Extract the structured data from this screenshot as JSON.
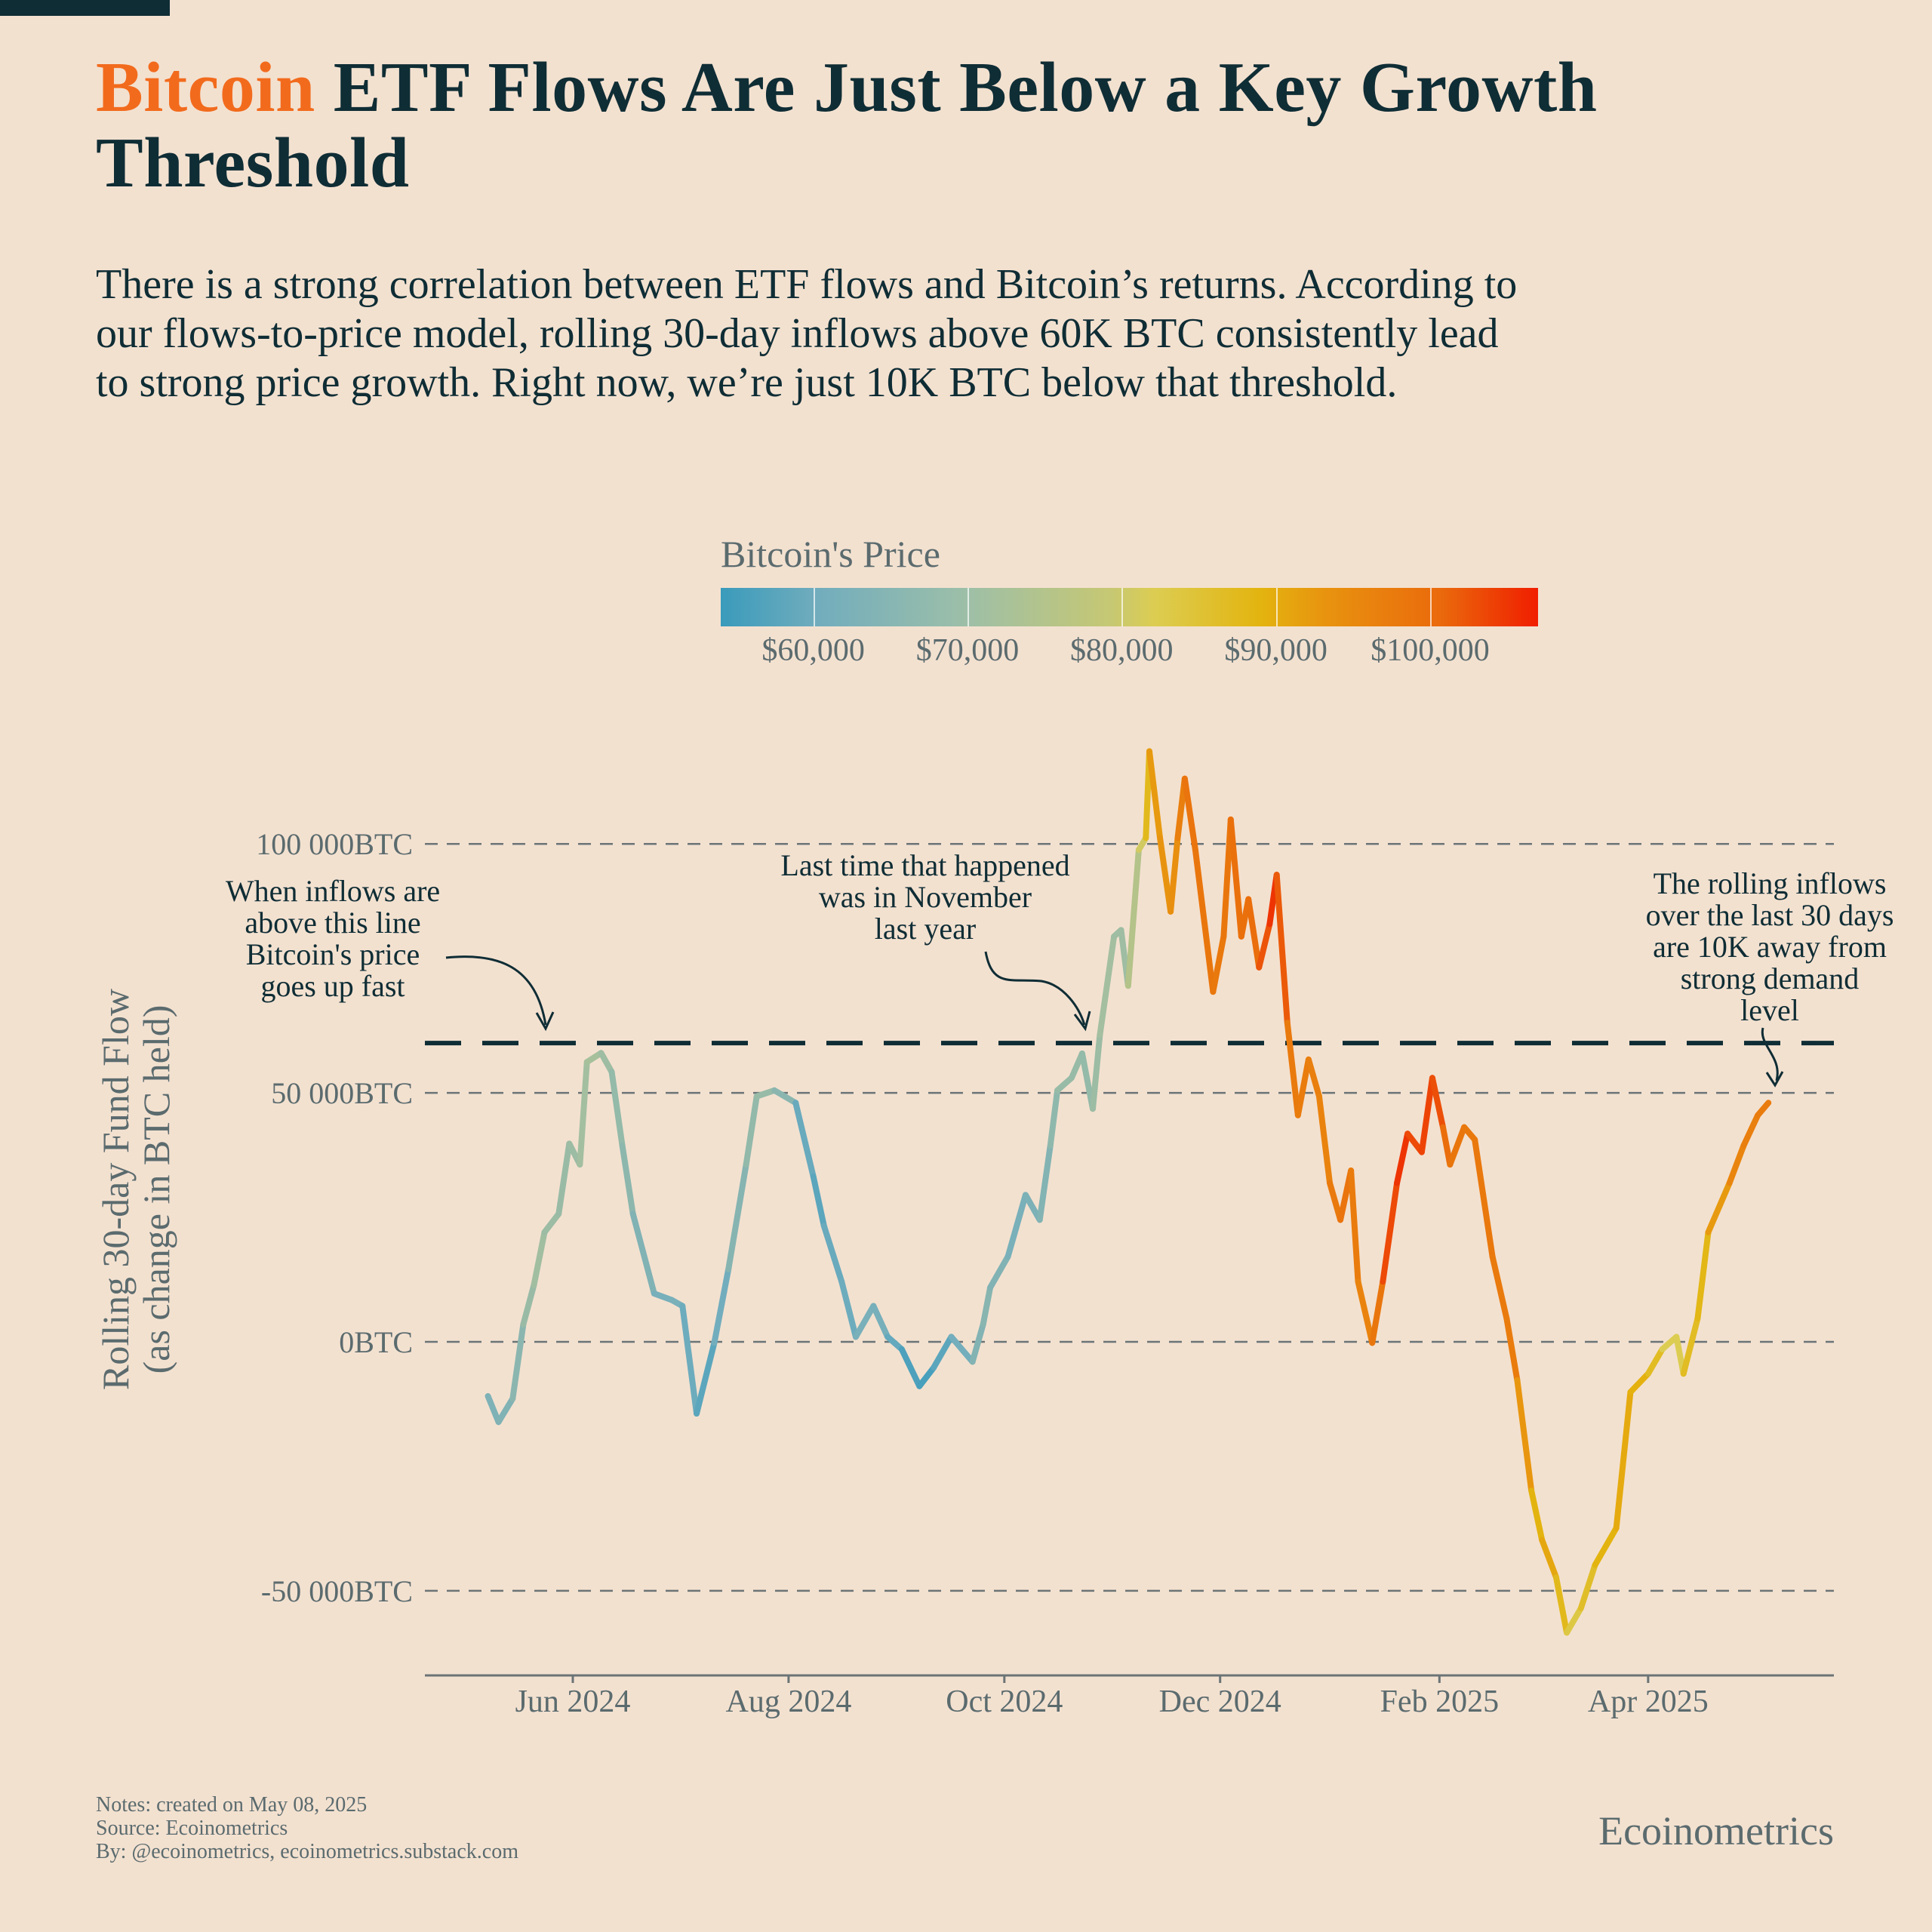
{
  "title": {
    "accent": "Bitcoin",
    "rest": " ETF Flows Are Just Below a Key Growth Threshold"
  },
  "subtitle": "There is a strong correlation between ETF flows and Bitcoin’s returns. According to our flows-to-price model, rolling 30-day inflows above 60K BTC consistently lead to strong price growth. Right now, we’re just 10K BTC below that threshold.",
  "colors": {
    "accent": "#f26b1d",
    "text": "#0f2d35",
    "muted": "#5b6b6e",
    "background": "#f3e1d0",
    "threshold": "#0f2d35",
    "grid": "#6b7476"
  },
  "colorbar": {
    "title": "Bitcoin's Price",
    "ticks": [
      60000,
      70000,
      80000,
      90000,
      100000
    ],
    "tick_labels": [
      "$60,000",
      "$70,000",
      "$80,000",
      "$90,000",
      "$100,000"
    ],
    "range": [
      54000,
      107000
    ],
    "stops": [
      [
        54000,
        "#3a9bbb"
      ],
      [
        60000,
        "#72adbd"
      ],
      [
        70000,
        "#a3bfa0"
      ],
      [
        80000,
        "#dccd52"
      ],
      [
        85000,
        "#e3b40f"
      ],
      [
        90000,
        "#e8930f"
      ],
      [
        100000,
        "#ea6a0c"
      ],
      [
        107000,
        "#f01e00"
      ]
    ]
  },
  "chart_data": {
    "type": "line",
    "ylabel": "Rolling 30-day Fund Flow\n(as change in BTC held)",
    "xlabel": "",
    "yticks": [
      -50000,
      0,
      50000,
      100000
    ],
    "ytick_labels": [
      "-50 000BTC",
      "0BTC",
      "50 000BTC",
      "100 000BTC"
    ],
    "xticks": [
      "2024-06-01",
      "2024-08-01",
      "2024-10-01",
      "2024-12-01",
      "2025-02-01",
      "2025-04-01"
    ],
    "xtick_labels": [
      "Jun 2024",
      "Aug 2024",
      "Oct 2024",
      "Dec 2024",
      "Feb 2025",
      "Apr 2025"
    ],
    "ylim": [
      -62000,
      125000
    ],
    "xlim": [
      "2024-04-21",
      "2025-05-20"
    ],
    "grid": "horizontal dashed",
    "threshold": 60000,
    "color_by": "Bitcoin's Price",
    "dates": [
      "2024-05-08",
      "2024-05-11",
      "2024-05-15",
      "2024-05-18",
      "2024-05-21",
      "2024-05-24",
      "2024-05-28",
      "2024-05-31",
      "2024-06-03",
      "2024-06-05",
      "2024-06-09",
      "2024-06-12",
      "2024-06-15",
      "2024-06-18",
      "2024-06-24",
      "2024-06-29",
      "2024-07-02",
      "2024-07-06",
      "2024-07-11",
      "2024-07-15",
      "2024-07-20",
      "2024-07-23",
      "2024-07-28",
      "2024-08-03",
      "2024-08-08",
      "2024-08-11",
      "2024-08-16",
      "2024-08-20",
      "2024-08-25",
      "2024-08-29",
      "2024-09-02",
      "2024-09-07",
      "2024-09-11",
      "2024-09-16",
      "2024-09-22",
      "2024-09-25",
      "2024-09-27",
      "2024-10-02",
      "2024-10-07",
      "2024-10-11",
      "2024-10-14",
      "2024-10-16",
      "2024-10-20",
      "2024-10-23",
      "2024-10-26",
      "2024-10-28",
      "2024-11-01",
      "2024-11-03",
      "2024-11-05",
      "2024-11-08",
      "2024-11-10",
      "2024-11-11",
      "2024-11-14",
      "2024-11-17",
      "2024-11-19",
      "2024-11-21",
      "2024-11-24",
      "2024-11-29",
      "2024-12-02",
      "2024-12-04",
      "2024-12-07",
      "2024-12-09",
      "2024-12-12",
      "2024-12-15",
      "2024-12-17",
      "2024-12-20",
      "2024-12-23",
      "2024-12-26",
      "2024-12-29",
      "2025-01-01",
      "2025-01-04",
      "2025-01-07",
      "2025-01-09",
      "2025-01-13",
      "2025-01-16",
      "2025-01-20",
      "2025-01-23",
      "2025-01-27",
      "2025-01-30",
      "2025-02-02",
      "2025-02-04",
      "2025-02-08",
      "2025-02-11",
      "2025-02-16",
      "2025-02-20",
      "2025-02-23",
      "2025-02-27",
      "2025-03-02",
      "2025-03-06",
      "2025-03-09",
      "2025-03-13",
      "2025-03-17",
      "2025-03-23",
      "2025-03-27",
      "2025-04-01",
      "2025-04-05",
      "2025-04-09",
      "2025-04-11",
      "2025-04-15",
      "2025-04-18",
      "2025-04-24",
      "2025-04-28",
      "2025-05-02",
      "2025-05-05"
    ],
    "flow": [
      -10900,
      -16100,
      -11400,
      3500,
      11400,
      22000,
      25700,
      39800,
      35600,
      56200,
      58000,
      54200,
      39400,
      25700,
      9700,
      8400,
      7200,
      -14400,
      -200,
      14600,
      35600,
      49300,
      50500,
      48000,
      33200,
      23300,
      12100,
      1000,
      7200,
      1000,
      -1500,
      -8900,
      -5200,
      1000,
      -4000,
      3500,
      10900,
      17100,
      29500,
      24500,
      39400,
      50500,
      53000,
      57900,
      46800,
      61600,
      81400,
      82700,
      71500,
      98800,
      101200,
      118600,
      101200,
      86400,
      101200,
      113100,
      98800,
      70300,
      81400,
      104900,
      81400,
      88900,
      75200,
      83900,
      93800,
      64100,
      45500,
      56700,
      49300,
      31900,
      24500,
      34400,
      12100,
      -200,
      12100,
      31900,
      41800,
      38100,
      53000,
      43100,
      35600,
      43100,
      40600,
      17100,
      4700,
      -7700,
      -29900,
      -39800,
      -47300,
      -58400,
      -53500,
      -44800,
      -37400,
      -10100,
      -6400,
      -1500,
      1000,
      -6400,
      4700,
      22000,
      31900,
      39400,
      45500,
      48000
    ],
    "price": [
      63000,
      62000,
      64000,
      66000,
      70000,
      69000,
      68000,
      68000,
      69000,
      71000,
      70000,
      68000,
      66000,
      65000,
      61000,
      61000,
      62000,
      57000,
      58000,
      62000,
      66000,
      67000,
      68000,
      62000,
      56000,
      59000,
      59000,
      60000,
      63000,
      59000,
      58000,
      54000,
      57000,
      58000,
      63000,
      64000,
      65000,
      61000,
      62000,
      62000,
      65000,
      67000,
      68000,
      67000,
      67000,
      70000,
      70000,
      68000,
      70000,
      76000,
      80000,
      88000,
      90000,
      90000,
      92000,
      98000,
      97000,
      97000,
      96000,
      98000,
      99000,
      98000,
      100000,
      104000,
      106000,
      97000,
      95000,
      96000,
      94000,
      94000,
      98000,
      97000,
      94000,
      94000,
      100000,
      106000,
      104000,
      102000,
      105000,
      100000,
      98000,
      96000,
      97000,
      96000,
      96000,
      95000,
      84000,
      86000,
      88000,
      80000,
      82000,
      84000,
      86000,
      87000,
      84000,
      83000,
      77000,
      83000,
      84000,
      85000,
      93000,
      94000,
      96000,
      95000
    ],
    "annotations": [
      {
        "lines": [
          "When inflows are",
          "above this line",
          "Bitcoin's price",
          "goes up fast"
        ]
      },
      {
        "lines": [
          "Last time that happened",
          "was in November",
          "last year"
        ]
      },
      {
        "lines": [
          "The rolling inflows",
          "over the last 30 days",
          "are 10K away from",
          "strong demand",
          "level"
        ]
      }
    ]
  },
  "footer": {
    "notes": [
      "Notes: created on May 08, 2025",
      "Source: Ecoinometrics",
      "By: @ecoinometrics, ecoinometrics.substack.com"
    ],
    "brand": "Ecoinometrics"
  }
}
